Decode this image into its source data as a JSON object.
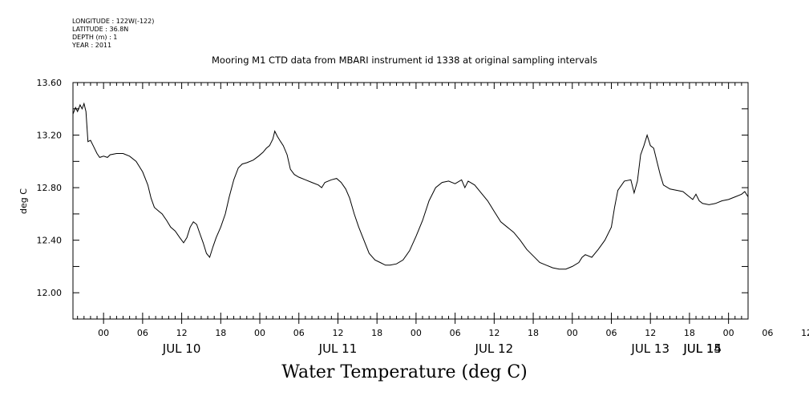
{
  "header": {
    "longitude": "LONGITUDE : 122W(-122)",
    "latitude": "LATITUDE : 36.8N",
    "depth": "DEPTH (m) : 1",
    "year": "YEAR : 2011",
    "title": "Mooring M1 CTD data from MBARI instrument id 1338 at original sampling intervals"
  },
  "footer": {
    "title": "Water Temperature (deg C)"
  },
  "chart_data": {
    "type": "line",
    "title": "Mooring M1 CTD data from MBARI instrument id 1338 at original sampling intervals",
    "xlabel": "",
    "ylabel": "deg C",
    "x_units": "hours since JUL 10 00:00 (2011)",
    "xlim": [
      -4.7,
      99.0
    ],
    "ylim": [
      11.8,
      13.6
    ],
    "y_ticks": [
      "12.00",
      "12.40",
      "12.80",
      "13.20",
      "13.60"
    ],
    "x_hour_ticks": [
      "00",
      "06",
      "12",
      "18",
      "00",
      "06",
      "12",
      "18",
      "00",
      "06",
      "12",
      "18",
      "00",
      "06",
      "12",
      "18",
      "00",
      "06",
      "12",
      "18",
      "00",
      "06"
    ],
    "x_day_labels": [
      "JUL 10",
      "JUL 11",
      "JUL 12",
      "JUL 13",
      "JUL 14",
      "JUL 15"
    ],
    "series": [
      {
        "name": "",
        "color": "#000000",
        "points": [
          [
            -4.7,
            13.36
          ],
          [
            -4.3,
            13.41
          ],
          [
            -4.0,
            13.38
          ],
          [
            -3.6,
            13.43
          ],
          [
            -3.3,
            13.4
          ],
          [
            -3.0,
            13.44
          ],
          [
            -2.7,
            13.38
          ],
          [
            -2.4,
            13.15
          ],
          [
            -2.0,
            13.16
          ],
          [
            -1.6,
            13.12
          ],
          [
            -1.0,
            13.06
          ],
          [
            -0.6,
            13.03
          ],
          [
            0.0,
            13.04
          ],
          [
            0.6,
            13.03
          ],
          [
            1.0,
            13.05
          ],
          [
            2.0,
            13.06
          ],
          [
            3.0,
            13.06
          ],
          [
            4.0,
            13.04
          ],
          [
            5.0,
            13.0
          ],
          [
            6.0,
            12.92
          ],
          [
            6.8,
            12.82
          ],
          [
            7.3,
            12.72
          ],
          [
            7.8,
            12.65
          ],
          [
            8.5,
            12.62
          ],
          [
            9.0,
            12.6
          ],
          [
            9.7,
            12.55
          ],
          [
            10.3,
            12.5
          ],
          [
            11.0,
            12.47
          ],
          [
            11.7,
            12.42
          ],
          [
            12.3,
            12.38
          ],
          [
            12.8,
            12.42
          ],
          [
            13.3,
            12.5
          ],
          [
            13.8,
            12.54
          ],
          [
            14.3,
            12.52
          ],
          [
            14.8,
            12.45
          ],
          [
            15.3,
            12.38
          ],
          [
            15.8,
            12.3
          ],
          [
            16.3,
            12.27
          ],
          [
            16.8,
            12.35
          ],
          [
            17.3,
            12.42
          ],
          [
            18.0,
            12.5
          ],
          [
            18.7,
            12.6
          ],
          [
            19.3,
            12.73
          ],
          [
            20.0,
            12.86
          ],
          [
            20.7,
            12.95
          ],
          [
            21.3,
            12.98
          ],
          [
            22.0,
            12.99
          ],
          [
            23.0,
            13.01
          ],
          [
            23.8,
            13.04
          ],
          [
            24.5,
            13.07
          ],
          [
            25.0,
            13.1
          ],
          [
            25.5,
            13.12
          ],
          [
            26.0,
            13.17
          ],
          [
            26.3,
            13.23
          ],
          [
            26.7,
            13.19
          ],
          [
            27.2,
            13.15
          ],
          [
            27.6,
            13.12
          ],
          [
            28.2,
            13.05
          ],
          [
            28.7,
            12.94
          ],
          [
            29.3,
            12.9
          ],
          [
            30.0,
            12.88
          ],
          [
            31.0,
            12.86
          ],
          [
            32.0,
            12.84
          ],
          [
            33.0,
            12.82
          ],
          [
            33.5,
            12.8
          ],
          [
            34.0,
            12.84
          ],
          [
            35.0,
            12.86
          ],
          [
            35.8,
            12.87
          ],
          [
            36.5,
            12.84
          ],
          [
            37.2,
            12.79
          ],
          [
            37.8,
            12.72
          ],
          [
            38.5,
            12.6
          ],
          [
            39.2,
            12.5
          ],
          [
            40.0,
            12.4
          ],
          [
            40.8,
            12.3
          ],
          [
            41.7,
            12.25
          ],
          [
            42.5,
            12.23
          ],
          [
            43.3,
            12.21
          ],
          [
            44.0,
            12.21
          ],
          [
            45.0,
            12.22
          ],
          [
            46.0,
            12.25
          ],
          [
            47.0,
            12.32
          ],
          [
            48.0,
            12.43
          ],
          [
            49.0,
            12.55
          ],
          [
            50.0,
            12.7
          ],
          [
            51.0,
            12.8
          ],
          [
            52.0,
            12.84
          ],
          [
            53.0,
            12.85
          ],
          [
            54.0,
            12.83
          ],
          [
            55.0,
            12.86
          ],
          [
            55.5,
            12.8
          ],
          [
            56.0,
            12.85
          ],
          [
            57.0,
            12.82
          ],
          [
            58.0,
            12.76
          ],
          [
            59.0,
            12.7
          ],
          [
            60.0,
            12.62
          ],
          [
            61.0,
            12.54
          ],
          [
            62.0,
            12.5
          ],
          [
            63.0,
            12.46
          ],
          [
            64.0,
            12.4
          ],
          [
            65.0,
            12.33
          ],
          [
            66.0,
            12.28
          ],
          [
            67.0,
            12.23
          ],
          [
            68.0,
            12.21
          ],
          [
            69.0,
            12.19
          ],
          [
            70.0,
            12.18
          ],
          [
            71.0,
            12.18
          ],
          [
            72.0,
            12.2
          ],
          [
            73.0,
            12.23
          ],
          [
            73.5,
            12.27
          ],
          [
            74.0,
            12.29
          ],
          [
            75.0,
            12.27
          ],
          [
            76.0,
            12.33
          ],
          [
            77.0,
            12.4
          ],
          [
            78.0,
            12.5
          ],
          [
            78.5,
            12.65
          ],
          [
            79.0,
            12.78
          ],
          [
            80.0,
            12.85
          ],
          [
            81.0,
            12.86
          ],
          [
            81.5,
            12.76
          ],
          [
            82.0,
            12.85
          ],
          [
            82.5,
            13.05
          ],
          [
            83.0,
            13.12
          ],
          [
            83.5,
            13.2
          ],
          [
            84.0,
            13.12
          ],
          [
            84.5,
            13.1
          ],
          [
            85.0,
            13.0
          ],
          [
            85.5,
            12.9
          ],
          [
            86.0,
            12.82
          ],
          [
            87.0,
            12.79
          ],
          [
            88.0,
            12.78
          ],
          [
            89.0,
            12.77
          ],
          [
            90.0,
            12.73
          ],
          [
            90.5,
            12.71
          ],
          [
            91.0,
            12.75
          ],
          [
            91.5,
            12.7
          ],
          [
            92.0,
            12.68
          ],
          [
            93.0,
            12.67
          ],
          [
            94.0,
            12.68
          ],
          [
            95.0,
            12.7
          ],
          [
            96.0,
            12.71
          ],
          [
            97.0,
            12.73
          ],
          [
            98.0,
            12.75
          ],
          [
            98.5,
            12.77
          ],
          [
            99.0,
            12.73
          ]
        ]
      }
    ]
  }
}
